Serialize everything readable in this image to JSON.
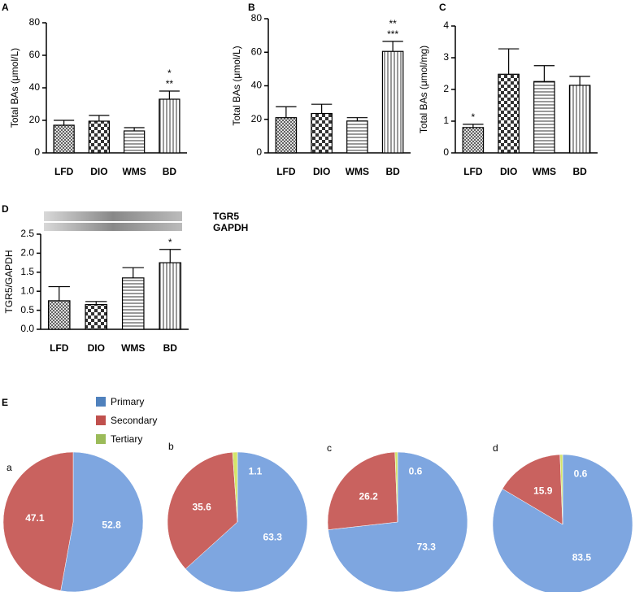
{
  "chart_data": [
    {
      "type": "bar",
      "panel": "A",
      "y_label": "Total BAs (μmol/L)",
      "categories": [
        "LFD",
        "DIO",
        "WMS",
        "BD"
      ],
      "values": [
        17,
        19.5,
        13.5,
        33
      ],
      "errors": [
        3,
        3.5,
        2,
        5
      ],
      "ylim": [
        0,
        80
      ],
      "yticks": [
        0,
        20,
        40,
        60,
        80
      ],
      "significance": [
        null,
        null,
        null,
        [
          "*",
          "**"
        ]
      ]
    },
    {
      "type": "bar",
      "panel": "B",
      "y_label": "Total BAs (μmol/L)",
      "categories": [
        "LFD",
        "DIO",
        "WMS",
        "BD"
      ],
      "values": [
        21,
        23.5,
        19,
        60.5
      ],
      "errors": [
        6.5,
        5.5,
        2,
        6
      ],
      "ylim": [
        0,
        80
      ],
      "yticks": [
        0,
        20,
        40,
        60,
        80
      ],
      "significance": [
        null,
        null,
        null,
        [
          "**",
          "***"
        ]
      ]
    },
    {
      "type": "bar",
      "panel": "C",
      "y_label": "Total BAs (μmol/mg)",
      "categories": [
        "LFD",
        "DIO",
        "WMS",
        "BD"
      ],
      "values": [
        0.8,
        2.48,
        2.25,
        2.13
      ],
      "errors": [
        0.1,
        0.8,
        0.5,
        0.28
      ],
      "ylim": [
        0,
        4
      ],
      "yticks": [
        0,
        1,
        2,
        3,
        4
      ],
      "significance": [
        [
          "*"
        ],
        null,
        null,
        null
      ]
    },
    {
      "type": "bar",
      "panel": "D",
      "y_label": "TGR5/GAPDH",
      "categories": [
        "LFD",
        "DIO",
        "WMS",
        "BD"
      ],
      "values": [
        0.75,
        0.65,
        1.35,
        1.75
      ],
      "errors": [
        0.37,
        0.08,
        0.27,
        0.35
      ],
      "ylim": [
        0,
        2.5
      ],
      "yticks": [
        {
          "value": 0,
          "label": "0.0"
        },
        0.5,
        {
          "value": 1,
          "label": "1.0"
        },
        1.5,
        {
          "value": 2,
          "label": "2.0"
        },
        2.5
      ],
      "significance": [
        null,
        null,
        null,
        [
          "*"
        ]
      ],
      "blot_labels": [
        "TGR5",
        "GAPDH"
      ]
    },
    {
      "type": "pie",
      "panel": "E",
      "categories": [
        "Primary",
        "Secondary",
        "Tertiary"
      ],
      "colors": [
        "#7ea6e0",
        "#c9625f",
        "#d4e56a"
      ],
      "legend_colors": [
        "#4f81bd",
        "#c0504d",
        "#9bbb59"
      ],
      "pies": [
        {
          "title": "a",
          "values": [
            52.8,
            47.1,
            null
          ]
        },
        {
          "title": "b",
          "values": [
            63.3,
            35.6,
            1.1
          ]
        },
        {
          "title": "c",
          "values": [
            73.3,
            26.2,
            0.6
          ]
        },
        {
          "title": "d",
          "values": [
            83.5,
            15.9,
            0.6
          ]
        }
      ]
    }
  ]
}
